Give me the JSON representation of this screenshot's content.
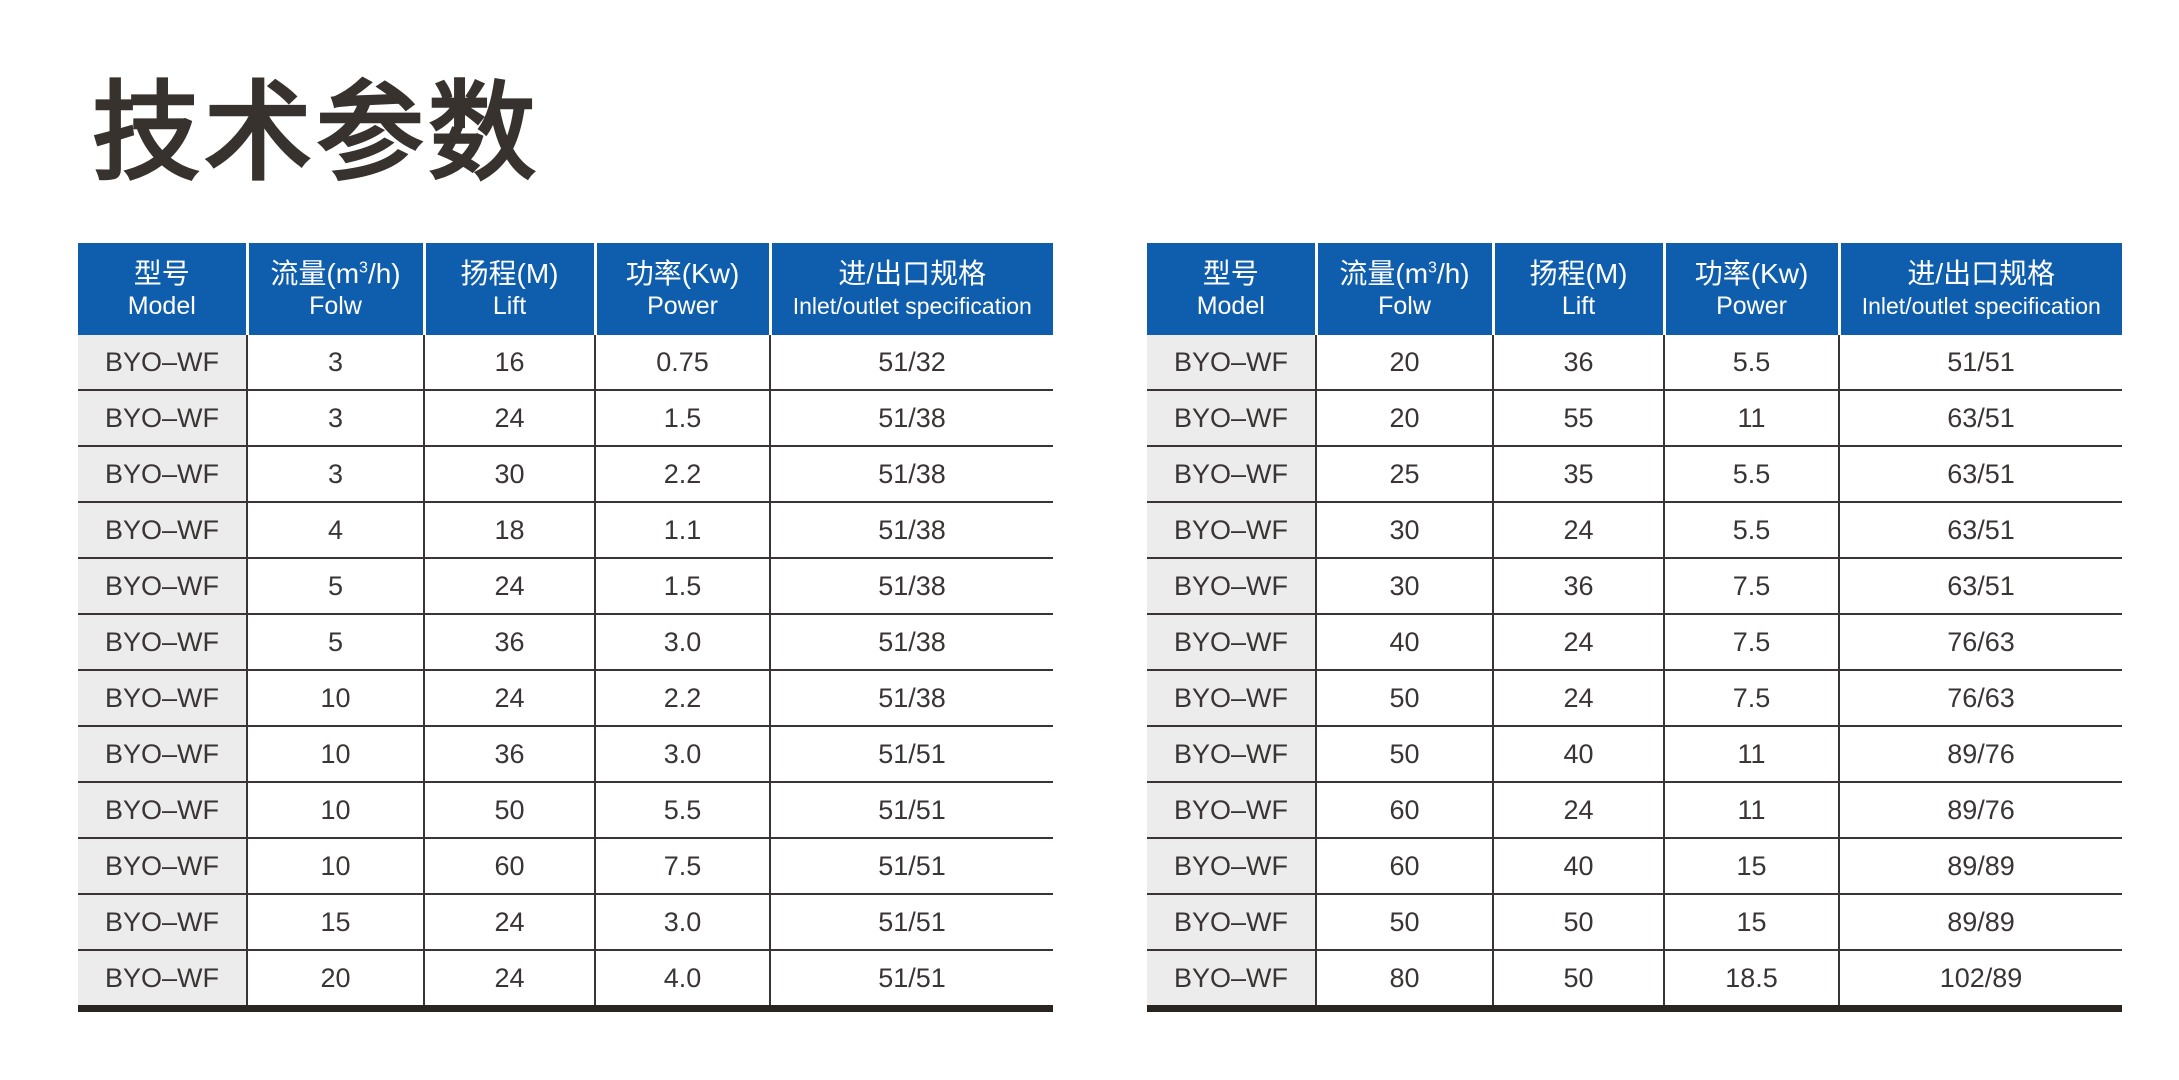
{
  "title": "技术参数",
  "colors": {
    "header_bg": "#0f5ead",
    "header_text": "#ffffff",
    "model_column_bg": "#ececec",
    "body_text": "#3a3534",
    "grid_line": "#3a3534",
    "bottom_border": "#2b2522",
    "title_text": "#38322f",
    "page_bg": "#ffffff"
  },
  "columns": [
    {
      "zh": "型号",
      "en": "Model"
    },
    {
      "zh_pre": "流量(m",
      "zh_sup": "3",
      "zh_post": "/h)",
      "en": "Folw"
    },
    {
      "zh": "扬程(M)",
      "en": "Lift"
    },
    {
      "zh": "功率(Kw)",
      "en": "Power"
    },
    {
      "zh": "进/出口规格",
      "en": "Inlet/outlet specification"
    }
  ],
  "tables": {
    "left": {
      "rows": [
        [
          "BYO–WF",
          "3",
          "16",
          "0.75",
          "51/32"
        ],
        [
          "BYO–WF",
          "3",
          "24",
          "1.5",
          "51/38"
        ],
        [
          "BYO–WF",
          "3",
          "30",
          "2.2",
          "51/38"
        ],
        [
          "BYO–WF",
          "4",
          "18",
          "1.1",
          "51/38"
        ],
        [
          "BYO–WF",
          "5",
          "24",
          "1.5",
          "51/38"
        ],
        [
          "BYO–WF",
          "5",
          "36",
          "3.0",
          "51/38"
        ],
        [
          "BYO–WF",
          "10",
          "24",
          "2.2",
          "51/38"
        ],
        [
          "BYO–WF",
          "10",
          "36",
          "3.0",
          "51/51"
        ],
        [
          "BYO–WF",
          "10",
          "50",
          "5.5",
          "51/51"
        ],
        [
          "BYO–WF",
          "10",
          "60",
          "7.5",
          "51/51"
        ],
        [
          "BYO–WF",
          "15",
          "24",
          "3.0",
          "51/51"
        ],
        [
          "BYO–WF",
          "20",
          "24",
          "4.0",
          "51/51"
        ]
      ]
    },
    "right": {
      "rows": [
        [
          "BYO–WF",
          "20",
          "36",
          "5.5",
          "51/51"
        ],
        [
          "BYO–WF",
          "20",
          "55",
          "11",
          "63/51"
        ],
        [
          "BYO–WF",
          "25",
          "35",
          "5.5",
          "63/51"
        ],
        [
          "BYO–WF",
          "30",
          "24",
          "5.5",
          "63/51"
        ],
        [
          "BYO–WF",
          "30",
          "36",
          "7.5",
          "63/51"
        ],
        [
          "BYO–WF",
          "40",
          "24",
          "7.5",
          "76/63"
        ],
        [
          "BYO–WF",
          "50",
          "24",
          "7.5",
          "76/63"
        ],
        [
          "BYO–WF",
          "50",
          "40",
          "11",
          "89/76"
        ],
        [
          "BYO–WF",
          "60",
          "24",
          "11",
          "89/76"
        ],
        [
          "BYO–WF",
          "60",
          "40",
          "15",
          "89/89"
        ],
        [
          "BYO–WF",
          "50",
          "50",
          "15",
          "89/89"
        ],
        [
          "BYO–WF",
          "80",
          "50",
          "18.5",
          "102/89"
        ]
      ]
    }
  }
}
